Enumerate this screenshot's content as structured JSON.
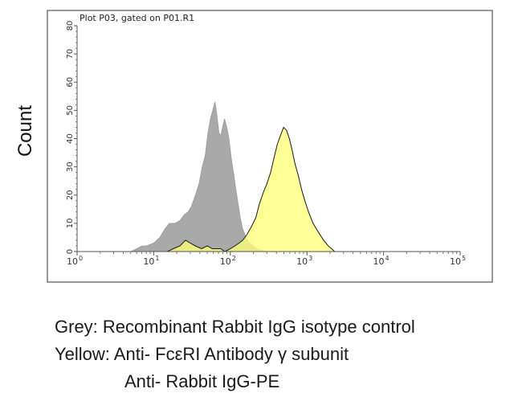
{
  "chart_data": {
    "type": "area",
    "title": "Plot P03, gated on P01.R1",
    "ylabel": "Count",
    "xlabel": "",
    "xscale": "log",
    "xlim": [
      1,
      100000
    ],
    "ylim": [
      0,
      80
    ],
    "yticks": [
      0,
      10,
      20,
      30,
      40,
      50,
      60,
      70,
      80
    ],
    "ytick_labels": [
      "0",
      "10",
      "20",
      "30",
      "40",
      "50",
      "60",
      "70",
      "80"
    ],
    "xticks": [
      1,
      10,
      100,
      1000,
      10000,
      100000
    ],
    "xtick_bases": [
      "10",
      "10",
      "10",
      "10",
      "10",
      "10"
    ],
    "xtick_exps": [
      "0",
      "1",
      "2",
      "3",
      "4",
      "5"
    ],
    "grid": false,
    "series": [
      {
        "fill": "#a9a9a9",
        "stroke": "#9a9a9a",
        "x": [
          1,
          5,
          6,
          7,
          8,
          10,
          12,
          14,
          16,
          19,
          22,
          25,
          28,
          31,
          35,
          39,
          43,
          47,
          51,
          55,
          59,
          63,
          67,
          71,
          75,
          79,
          84,
          90,
          96,
          103,
          110,
          118,
          126,
          135,
          145,
          160,
          180,
          220,
          300,
          1000
        ],
        "y": [
          0,
          0,
          1,
          2,
          2,
          3,
          5,
          8,
          10,
          10,
          11,
          13,
          14,
          16,
          20,
          24,
          30,
          34,
          42,
          47,
          50,
          53,
          48,
          42,
          41,
          44,
          47,
          44,
          40,
          33,
          28,
          22,
          17,
          12,
          8,
          5,
          3,
          1,
          0,
          0
        ]
      },
      {
        "fill": "#ffff7a",
        "stroke": "#1a1a1a",
        "x": [
          1,
          15,
          18,
          22,
          26,
          30,
          35,
          42,
          50,
          58,
          66,
          75,
          85,
          100,
          115,
          130,
          145,
          165,
          190,
          215,
          240,
          270,
          300,
          335,
          370,
          410,
          450,
          495,
          540,
          590,
          640,
          700,
          770,
          850,
          940,
          1050,
          1200,
          1400,
          1650,
          1900,
          2100,
          2300,
          3000
        ],
        "y": [
          0,
          0,
          1,
          2,
          4,
          3,
          2,
          1,
          2,
          1,
          1,
          1,
          0,
          1,
          2,
          3,
          4,
          6,
          9,
          12,
          17,
          21,
          24,
          28,
          33,
          38,
          41,
          44,
          43,
          40,
          36,
          31,
          27,
          22,
          18,
          14,
          10,
          7,
          4,
          2,
          1,
          0,
          0
        ]
      }
    ]
  },
  "captions": {
    "line1": "Grey: Recombinant Rabbit IgG isotype control",
    "line2": "Yellow: Anti- FcεRI Antibody γ subunit",
    "line3": "Anti- Rabbit IgG-PE"
  }
}
